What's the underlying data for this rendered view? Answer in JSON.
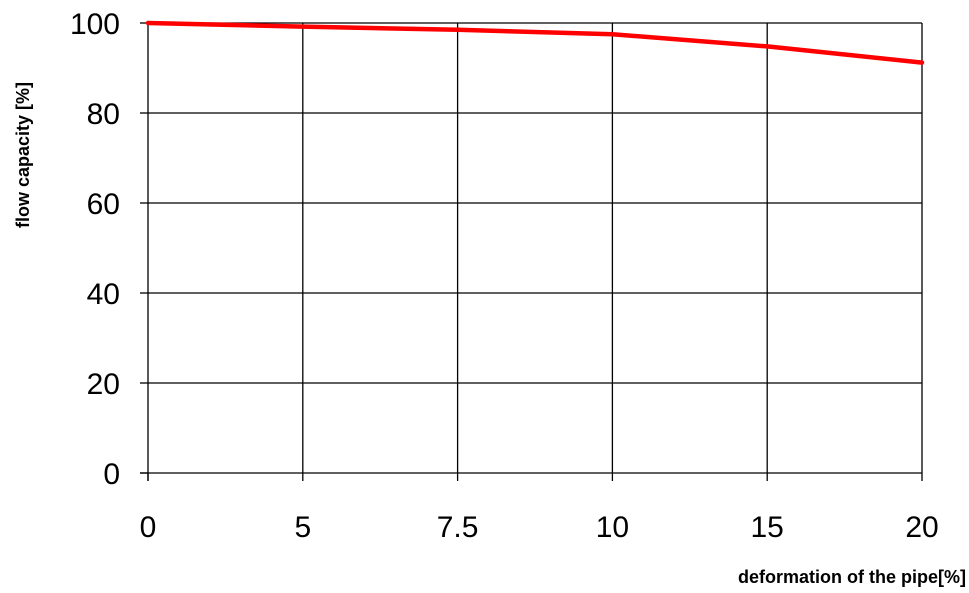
{
  "chart_data": {
    "type": "line",
    "title": "",
    "xlabel": "deformation of the pipe[%]",
    "ylabel": "flow capacity [%]",
    "x_scale": "categorical",
    "categories": [
      "0",
      "5",
      "7.5",
      "10",
      "15",
      "20"
    ],
    "ylim": [
      0,
      100
    ],
    "y_ticks": [
      "0",
      "20",
      "40",
      "60",
      "80",
      "100"
    ],
    "grid": true,
    "legend": "none",
    "series": [
      {
        "values": [
          100,
          99.2,
          98.5,
          97.5,
          94.8,
          91.2
        ],
        "color": "#ff0000"
      }
    ]
  }
}
